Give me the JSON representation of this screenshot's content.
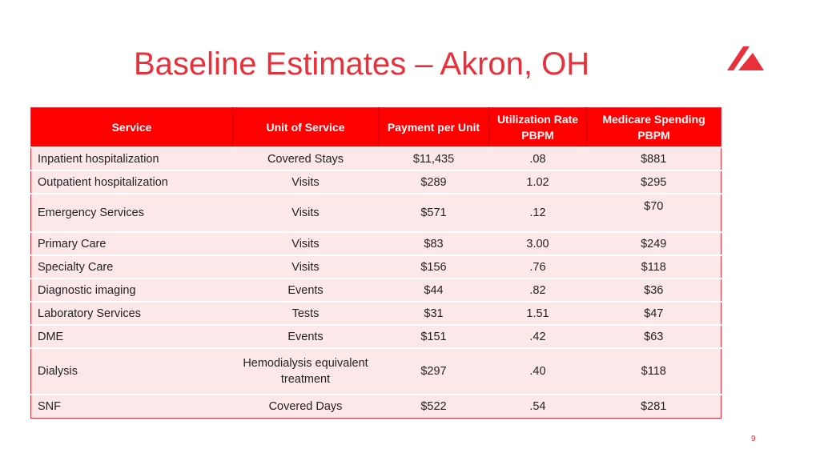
{
  "slide": {
    "title": "Baseline Estimates – Akron, OH",
    "page_number": "9",
    "accent_color": "#e8303a",
    "header_color": "#ff0000",
    "row_color": "#fde8e9",
    "logo_icon": "red-triangle-logo-icon"
  },
  "table": {
    "headers": [
      "Service",
      "Unit of Service",
      "Payment per Unit",
      "Utilization Rate PBPM",
      "Medicare Spending PBPM"
    ],
    "rows": [
      [
        "Inpatient hospitalization",
        "Covered Stays",
        "$11,435",
        ".08",
        "$881"
      ],
      [
        "Outpatient hospitalization",
        "Visits",
        "$289",
        "1.02",
        "$295"
      ],
      [
        "Emergency Services",
        "Visits",
        "$571",
        ".12",
        "$70"
      ],
      [
        "Primary Care",
        "Visits",
        "$83",
        "3.00",
        "$249"
      ],
      [
        "Specialty Care",
        "Visits",
        "$156",
        ".76",
        "$118"
      ],
      [
        "Diagnostic imaging",
        "Events",
        "$44",
        ".82",
        "$36"
      ],
      [
        "Laboratory Services",
        "Tests",
        "$31",
        "1.51",
        "$47"
      ],
      [
        "DME",
        "Events",
        "$151",
        ".42",
        "$63"
      ],
      [
        "Dialysis",
        "Hemodialysis equivalent treatment",
        "$297",
        ".40",
        "$118"
      ],
      [
        "SNF",
        "Covered Days",
        "$522",
        ".54",
        "$281"
      ]
    ]
  }
}
